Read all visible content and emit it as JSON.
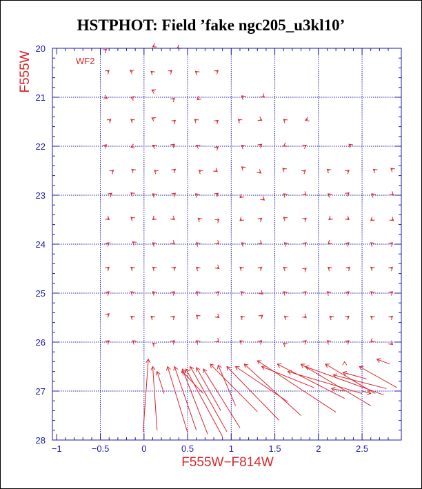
{
  "title": "HSTPHOT: Field ’fake ngc205_u3kl10’",
  "colors": {
    "axis": "#1a1aa8",
    "grid": "#1a1aa8",
    "vector": "#d8262c",
    "label": "#d8262c",
    "title": "#000000"
  },
  "chart_data": {
    "type": "vector-field",
    "title": "HSTPHOT: Field ’fake ngc205_u3kl10’",
    "xlabel": "F555W−F814W",
    "ylabel": "F555W",
    "annotation": "WF2",
    "xlim": [
      -1.05,
      2.95
    ],
    "ylim": [
      28,
      20
    ],
    "y_inverted": true,
    "grid": true,
    "x_ticks": [
      -1,
      -0.5,
      0,
      0.5,
      1,
      1.5,
      2,
      2.5
    ],
    "x_tick_labels": [
      "−1",
      "−0.5",
      "0",
      "0.5",
      "1",
      "1.5",
      "2",
      "2.5"
    ],
    "y_ticks": [
      20,
      21,
      22,
      23,
      24,
      25,
      26,
      27,
      28
    ],
    "y_tick_labels": [
      "20",
      "21",
      "22",
      "23",
      "24",
      "25",
      "26",
      "27",
      "28"
    ],
    "grid_x": [
      -0.5,
      0,
      0.5,
      1,
      1.5,
      2,
      2.5
    ],
    "grid_y": [
      21,
      22,
      23,
      24,
      25,
      26,
      27
    ],
    "vectors": [
      {
        "x": -0.43,
        "y": 20.02,
        "x2": -0.45,
        "y2": 20.05
      },
      {
        "x": 0.1,
        "y": 19.97,
        "x2": 0.12,
        "y2": 19.95
      },
      {
        "x": 0.38,
        "y": 20.0,
        "x2": 0.4,
        "y2": 19.98
      },
      {
        "x": -0.4,
        "y": 20.45,
        "x2": -0.42,
        "y2": 20.48
      },
      {
        "x": -0.16,
        "y": 20.45,
        "x2": -0.13,
        "y2": 20.48
      },
      {
        "x": 0.08,
        "y": 20.47,
        "x2": 0.1,
        "y2": 20.5
      },
      {
        "x": 0.32,
        "y": 20.45,
        "x2": 0.3,
        "y2": 20.48
      },
      {
        "x": 0.59,
        "y": 20.47,
        "x2": 0.61,
        "y2": 20.5
      },
      {
        "x": 0.85,
        "y": 20.45,
        "x2": 0.83,
        "y2": 20.48
      },
      {
        "x": 0.09,
        "y": 20.85,
        "x2": 0.12,
        "y2": 20.88
      },
      {
        "x": -0.42,
        "y": 21.02,
        "x2": -0.45,
        "y2": 21.0
      },
      {
        "x": -0.15,
        "y": 21.0,
        "x2": -0.12,
        "y2": 21.02
      },
      {
        "x": 0.35,
        "y": 21.02,
        "x2": 0.33,
        "y2": 21.05
      },
      {
        "x": 0.61,
        "y": 21.05,
        "x2": 0.63,
        "y2": 21.02
      },
      {
        "x": 1.12,
        "y": 20.97,
        "x2": 1.14,
        "y2": 21.0
      },
      {
        "x": 1.38,
        "y": 21.0,
        "x2": 1.36,
        "y2": 20.97
      },
      {
        "x": -0.38,
        "y": 21.45,
        "x2": -0.4,
        "y2": 21.48
      },
      {
        "x": -0.15,
        "y": 21.45,
        "x2": -0.13,
        "y2": 21.48
      },
      {
        "x": 0.09,
        "y": 21.42,
        "x2": 0.12,
        "y2": 21.45
      },
      {
        "x": 0.36,
        "y": 21.47,
        "x2": 0.34,
        "y2": 21.5
      },
      {
        "x": 0.58,
        "y": 21.45,
        "x2": 0.6,
        "y2": 21.48
      },
      {
        "x": 0.85,
        "y": 21.47,
        "x2": 0.83,
        "y2": 21.5
      },
      {
        "x": 1.08,
        "y": 21.45,
        "x2": 1.1,
        "y2": 21.48
      },
      {
        "x": 1.35,
        "y": 21.47,
        "x2": 1.33,
        "y2": 21.45
      },
      {
        "x": 1.6,
        "y": 21.45,
        "x2": 1.62,
        "y2": 21.48
      },
      {
        "x": 1.85,
        "y": 21.47,
        "x2": 1.88,
        "y2": 21.45
      },
      {
        "x": -0.43,
        "y": 21.97,
        "x2": -0.45,
        "y2": 22.0
      },
      {
        "x": -0.15,
        "y": 22.02,
        "x2": -0.12,
        "y2": 22.0
      },
      {
        "x": 0.1,
        "y": 21.98,
        "x2": 0.12,
        "y2": 22.0
      },
      {
        "x": 0.35,
        "y": 21.96,
        "x2": 0.33,
        "y2": 21.99
      },
      {
        "x": 0.6,
        "y": 21.98,
        "x2": 0.62,
        "y2": 22.0
      },
      {
        "x": 0.85,
        "y": 22.01,
        "x2": 0.83,
        "y2": 22.04
      },
      {
        "x": 1.12,
        "y": 21.98,
        "x2": 1.14,
        "y2": 22.01
      },
      {
        "x": 1.35,
        "y": 21.96,
        "x2": 1.33,
        "y2": 21.99
      },
      {
        "x": 1.6,
        "y": 22.0,
        "x2": 1.62,
        "y2": 21.98
      },
      {
        "x": 1.86,
        "y": 21.98,
        "x2": 1.84,
        "y2": 22.0
      },
      {
        "x": 2.35,
        "y": 21.96,
        "x2": 2.37,
        "y2": 21.99
      },
      {
        "x": -0.35,
        "y": 22.49,
        "x2": -0.37,
        "y2": 22.52
      },
      {
        "x": -0.14,
        "y": 22.47,
        "x2": -0.12,
        "y2": 22.5
      },
      {
        "x": 0.12,
        "y": 22.49,
        "x2": 0.14,
        "y2": 22.52
      },
      {
        "x": 0.36,
        "y": 22.47,
        "x2": 0.34,
        "y2": 22.5
      },
      {
        "x": 0.63,
        "y": 22.49,
        "x2": 0.65,
        "y2": 22.52
      },
      {
        "x": 0.84,
        "y": 22.52,
        "x2": 0.82,
        "y2": 22.49
      },
      {
        "x": 1.12,
        "y": 22.42,
        "x2": 1.14,
        "y2": 22.45
      },
      {
        "x": 1.34,
        "y": 22.55,
        "x2": 1.32,
        "y2": 22.52
      },
      {
        "x": 1.59,
        "y": 22.45,
        "x2": 1.61,
        "y2": 22.48
      },
      {
        "x": 1.85,
        "y": 22.49,
        "x2": 1.83,
        "y2": 22.52
      },
      {
        "x": 2.1,
        "y": 22.47,
        "x2": 2.12,
        "y2": 22.5
      },
      {
        "x": 2.35,
        "y": 22.49,
        "x2": 2.33,
        "y2": 22.52
      },
      {
        "x": 2.63,
        "y": 22.47,
        "x2": 2.65,
        "y2": 22.5
      },
      {
        "x": 2.83,
        "y": 22.45,
        "x2": 2.85,
        "y2": 22.48
      },
      {
        "x": -0.37,
        "y": 22.96,
        "x2": -0.39,
        "y2": 22.99
      },
      {
        "x": -0.15,
        "y": 22.95,
        "x2": -0.13,
        "y2": 22.98
      },
      {
        "x": 0.1,
        "y": 22.97,
        "x2": 0.12,
        "y2": 23.0
      },
      {
        "x": 0.36,
        "y": 22.96,
        "x2": 0.34,
        "y2": 22.99
      },
      {
        "x": 0.59,
        "y": 22.97,
        "x2": 0.61,
        "y2": 23.0
      },
      {
        "x": 0.85,
        "y": 22.96,
        "x2": 0.83,
        "y2": 22.99
      },
      {
        "x": 1.1,
        "y": 23.05,
        "x2": 1.12,
        "y2": 23.02
      },
      {
        "x": 1.38,
        "y": 23.1,
        "x2": 1.36,
        "y2": 23.07
      },
      {
        "x": 1.6,
        "y": 22.97,
        "x2": 1.62,
        "y2": 23.0
      },
      {
        "x": 1.86,
        "y": 23.0,
        "x2": 1.84,
        "y2": 22.97
      },
      {
        "x": 2.11,
        "y": 22.97,
        "x2": 2.13,
        "y2": 23.0
      },
      {
        "x": 2.35,
        "y": 22.95,
        "x2": 2.33,
        "y2": 22.98
      },
      {
        "x": 2.61,
        "y": 22.97,
        "x2": 2.63,
        "y2": 23.0
      },
      {
        "x": 2.86,
        "y": 23.0,
        "x2": 2.84,
        "y2": 22.97
      },
      {
        "x": -0.4,
        "y": 23.5,
        "x2": -0.42,
        "y2": 23.47
      },
      {
        "x": -0.15,
        "y": 23.45,
        "x2": -0.13,
        "y2": 23.48
      },
      {
        "x": 0.1,
        "y": 23.5,
        "x2": 0.12,
        "y2": 23.47
      },
      {
        "x": 0.35,
        "y": 23.5,
        "x2": 0.33,
        "y2": 23.47
      },
      {
        "x": 0.62,
        "y": 23.47,
        "x2": 0.64,
        "y2": 23.5
      },
      {
        "x": 0.86,
        "y": 23.49,
        "x2": 0.84,
        "y2": 23.52
      },
      {
        "x": 1.1,
        "y": 23.52,
        "x2": 1.12,
        "y2": 23.49
      },
      {
        "x": 1.35,
        "y": 23.47,
        "x2": 1.33,
        "y2": 23.5
      },
      {
        "x": 1.6,
        "y": 23.45,
        "x2": 1.62,
        "y2": 23.48
      },
      {
        "x": 1.86,
        "y": 23.47,
        "x2": 1.84,
        "y2": 23.5
      },
      {
        "x": 2.12,
        "y": 23.5,
        "x2": 2.14,
        "y2": 23.47
      },
      {
        "x": 2.35,
        "y": 23.5,
        "x2": 2.33,
        "y2": 23.47
      },
      {
        "x": 2.6,
        "y": 23.52,
        "x2": 2.62,
        "y2": 23.49
      },
      {
        "x": 2.86,
        "y": 23.52,
        "x2": 2.84,
        "y2": 23.49
      },
      {
        "x": -0.4,
        "y": 23.97,
        "x2": -0.42,
        "y2": 24.0
      },
      {
        "x": -0.13,
        "y": 23.95,
        "x2": -0.11,
        "y2": 23.98
      },
      {
        "x": 0.1,
        "y": 23.97,
        "x2": 0.12,
        "y2": 24.0
      },
      {
        "x": 0.35,
        "y": 24.0,
        "x2": 0.33,
        "y2": 23.97
      },
      {
        "x": 0.6,
        "y": 23.97,
        "x2": 0.62,
        "y2": 24.0
      },
      {
        "x": 0.86,
        "y": 24.0,
        "x2": 0.84,
        "y2": 23.97
      },
      {
        "x": 1.12,
        "y": 23.97,
        "x2": 1.14,
        "y2": 24.0
      },
      {
        "x": 1.35,
        "y": 24.0,
        "x2": 1.33,
        "y2": 23.97
      },
      {
        "x": 1.61,
        "y": 23.97,
        "x2": 1.63,
        "y2": 24.0
      },
      {
        "x": 1.86,
        "y": 23.97,
        "x2": 1.84,
        "y2": 24.0
      },
      {
        "x": 2.11,
        "y": 24.0,
        "x2": 2.13,
        "y2": 23.97
      },
      {
        "x": 2.35,
        "y": 23.97,
        "x2": 2.33,
        "y2": 24.0
      },
      {
        "x": 2.6,
        "y": 23.97,
        "x2": 2.62,
        "y2": 24.0
      },
      {
        "x": 2.85,
        "y": 23.97,
        "x2": 2.83,
        "y2": 24.0
      },
      {
        "x": -0.4,
        "y": 24.47,
        "x2": -0.42,
        "y2": 24.5
      },
      {
        "x": -0.15,
        "y": 24.47,
        "x2": -0.13,
        "y2": 24.5
      },
      {
        "x": 0.1,
        "y": 24.47,
        "x2": 0.12,
        "y2": 24.5
      },
      {
        "x": 0.36,
        "y": 24.47,
        "x2": 0.34,
        "y2": 24.5
      },
      {
        "x": 0.6,
        "y": 24.47,
        "x2": 0.62,
        "y2": 24.5
      },
      {
        "x": 0.86,
        "y": 24.5,
        "x2": 0.84,
        "y2": 24.47
      },
      {
        "x": 1.1,
        "y": 24.47,
        "x2": 1.12,
        "y2": 24.5
      },
      {
        "x": 1.35,
        "y": 24.47,
        "x2": 1.33,
        "y2": 24.5
      },
      {
        "x": 1.6,
        "y": 24.47,
        "x2": 1.62,
        "y2": 24.5
      },
      {
        "x": 1.86,
        "y": 24.49,
        "x2": 1.84,
        "y2": 24.52
      },
      {
        "x": 2.11,
        "y": 24.47,
        "x2": 2.13,
        "y2": 24.5
      },
      {
        "x": 2.36,
        "y": 24.47,
        "x2": 2.34,
        "y2": 24.5
      },
      {
        "x": 2.6,
        "y": 24.47,
        "x2": 2.62,
        "y2": 24.5
      },
      {
        "x": 2.85,
        "y": 24.47,
        "x2": 2.83,
        "y2": 24.5
      },
      {
        "x": -0.4,
        "y": 24.97,
        "x2": -0.42,
        "y2": 25.0
      },
      {
        "x": -0.15,
        "y": 24.97,
        "x2": -0.13,
        "y2": 25.0
      },
      {
        "x": 0.1,
        "y": 24.97,
        "x2": 0.12,
        "y2": 25.0
      },
      {
        "x": 0.35,
        "y": 24.97,
        "x2": 0.33,
        "y2": 25.0
      },
      {
        "x": 0.6,
        "y": 24.97,
        "x2": 0.62,
        "y2": 25.0
      },
      {
        "x": 0.86,
        "y": 24.97,
        "x2": 0.84,
        "y2": 25.0
      },
      {
        "x": 1.11,
        "y": 24.97,
        "x2": 1.13,
        "y2": 25.0
      },
      {
        "x": 1.36,
        "y": 25.02,
        "x2": 1.34,
        "y2": 24.99
      },
      {
        "x": 1.6,
        "y": 24.97,
        "x2": 1.62,
        "y2": 25.0
      },
      {
        "x": 1.86,
        "y": 24.97,
        "x2": 1.84,
        "y2": 25.0
      },
      {
        "x": 2.1,
        "y": 24.97,
        "x2": 2.12,
        "y2": 25.0
      },
      {
        "x": 2.35,
        "y": 24.97,
        "x2": 2.33,
        "y2": 25.0
      },
      {
        "x": 2.6,
        "y": 24.97,
        "x2": 2.62,
        "y2": 25.0
      },
      {
        "x": 2.85,
        "y": 24.97,
        "x2": 2.83,
        "y2": 25.0
      },
      {
        "x": -0.4,
        "y": 25.42,
        "x2": -0.42,
        "y2": 25.45
      },
      {
        "x": -0.15,
        "y": 25.47,
        "x2": -0.13,
        "y2": 25.5
      },
      {
        "x": 0.08,
        "y": 25.47,
        "x2": 0.1,
        "y2": 25.5
      },
      {
        "x": 0.35,
        "y": 25.47,
        "x2": 0.33,
        "y2": 25.5
      },
      {
        "x": 0.6,
        "y": 25.45,
        "x2": 0.62,
        "y2": 25.48
      },
      {
        "x": 0.86,
        "y": 25.5,
        "x2": 0.84,
        "y2": 25.47
      },
      {
        "x": 1.11,
        "y": 25.47,
        "x2": 1.13,
        "y2": 25.5
      },
      {
        "x": 1.36,
        "y": 25.45,
        "x2": 1.34,
        "y2": 25.48
      },
      {
        "x": 1.61,
        "y": 25.47,
        "x2": 1.63,
        "y2": 25.5
      },
      {
        "x": 1.86,
        "y": 25.5,
        "x2": 1.84,
        "y2": 25.47
      },
      {
        "x": 2.13,
        "y": 25.47,
        "x2": 2.15,
        "y2": 25.5
      },
      {
        "x": 2.35,
        "y": 25.47,
        "x2": 2.33,
        "y2": 25.5
      },
      {
        "x": 2.6,
        "y": 25.47,
        "x2": 2.62,
        "y2": 25.5
      },
      {
        "x": 2.85,
        "y": 25.47,
        "x2": 2.83,
        "y2": 25.5
      },
      {
        "x": -0.4,
        "y": 25.97,
        "x2": -0.42,
        "y2": 26.0
      },
      {
        "x": -0.13,
        "y": 25.97,
        "x2": -0.11,
        "y2": 26.0
      },
      {
        "x": 0.1,
        "y": 26.02,
        "x2": 0.12,
        "y2": 26.05
      },
      {
        "x": 0.35,
        "y": 25.97,
        "x2": 0.33,
        "y2": 26.0
      },
      {
        "x": 0.6,
        "y": 25.97,
        "x2": 0.62,
        "y2": 26.0
      },
      {
        "x": 0.86,
        "y": 26.0,
        "x2": 0.84,
        "y2": 25.97
      },
      {
        "x": 1.1,
        "y": 25.97,
        "x2": 1.12,
        "y2": 26.0
      },
      {
        "x": 1.35,
        "y": 25.97,
        "x2": 1.33,
        "y2": 26.0
      },
      {
        "x": 1.6,
        "y": 26.02,
        "x2": 1.62,
        "y2": 26.05
      },
      {
        "x": 1.86,
        "y": 25.97,
        "x2": 1.84,
        "y2": 26.0
      },
      {
        "x": 2.1,
        "y": 25.97,
        "x2": 2.12,
        "y2": 26.0
      },
      {
        "x": 2.35,
        "y": 25.97,
        "x2": 2.33,
        "y2": 26.0
      },
      {
        "x": 2.6,
        "y": 26.0,
        "x2": 2.62,
        "y2": 25.97
      },
      {
        "x": 2.85,
        "y": 26.05,
        "x2": 2.83,
        "y2": 26.02
      },
      {
        "x": 0.05,
        "y": 26.35,
        "x2": -0.01,
        "y2": 27.83
      },
      {
        "x": 0.1,
        "y": 26.5,
        "x2": 0.15,
        "y2": 27.8
      },
      {
        "x": 0.15,
        "y": 26.6,
        "x2": 0.23,
        "y2": 27.05
      },
      {
        "x": 0.27,
        "y": 26.5,
        "x2": 0.5,
        "y2": 27.85
      },
      {
        "x": 0.35,
        "y": 26.5,
        "x2": 0.6,
        "y2": 27.8
      },
      {
        "x": 0.44,
        "y": 26.55,
        "x2": 0.73,
        "y2": 27.88
      },
      {
        "x": 0.44,
        "y": 26.6,
        "x2": 0.68,
        "y2": 27.05
      },
      {
        "x": 0.48,
        "y": 26.55,
        "x2": 0.9,
        "y2": 27.93
      },
      {
        "x": 0.53,
        "y": 26.5,
        "x2": 0.95,
        "y2": 27.83
      },
      {
        "x": 0.6,
        "y": 26.52,
        "x2": 0.88,
        "y2": 27.4
      },
      {
        "x": 0.68,
        "y": 26.55,
        "x2": 1.1,
        "y2": 27.75
      },
      {
        "x": 0.76,
        "y": 26.45,
        "x2": 1.3,
        "y2": 27.42
      },
      {
        "x": 0.85,
        "y": 26.47,
        "x2": 1.05,
        "y2": 27.3
      },
      {
        "x": 0.95,
        "y": 26.5,
        "x2": 1.55,
        "y2": 27.6
      },
      {
        "x": 1.05,
        "y": 26.5,
        "x2": 1.65,
        "y2": 27.22
      },
      {
        "x": 1.15,
        "y": 26.45,
        "x2": 1.8,
        "y2": 27.5
      },
      {
        "x": 1.3,
        "y": 26.38,
        "x2": 2.2,
        "y2": 27.43
      },
      {
        "x": 1.35,
        "y": 26.5,
        "x2": 1.95,
        "y2": 26.93
      },
      {
        "x": 1.53,
        "y": 26.45,
        "x2": 2.3,
        "y2": 27.15
      },
      {
        "x": 1.65,
        "y": 26.6,
        "x2": 2.5,
        "y2": 27.05
      },
      {
        "x": 1.8,
        "y": 26.45,
        "x2": 2.6,
        "y2": 27.3
      },
      {
        "x": 1.85,
        "y": 26.5,
        "x2": 2.75,
        "y2": 27.08
      },
      {
        "x": 2.08,
        "y": 26.45,
        "x2": 2.65,
        "y2": 27.05
      },
      {
        "x": 2.17,
        "y": 26.67,
        "x2": 2.78,
        "y2": 26.95
      },
      {
        "x": 2.28,
        "y": 26.62,
        "x2": 2.55,
        "y2": 26.75
      },
      {
        "x": 2.3,
        "y": 26.4,
        "x2": 2.3,
        "y2": 26.42
      },
      {
        "x": 2.47,
        "y": 26.5,
        "x2": 2.9,
        "y2": 26.93
      },
      {
        "x": 2.67,
        "y": 26.35,
        "x2": 2.82,
        "y2": 26.45
      },
      {
        "x": 2.6,
        "y": 27.05,
        "x2": 2.5,
        "y2": 27.0
      },
      {
        "x": 2.15,
        "y": 26.95,
        "x2": 2.3,
        "y2": 27.0
      }
    ]
  }
}
